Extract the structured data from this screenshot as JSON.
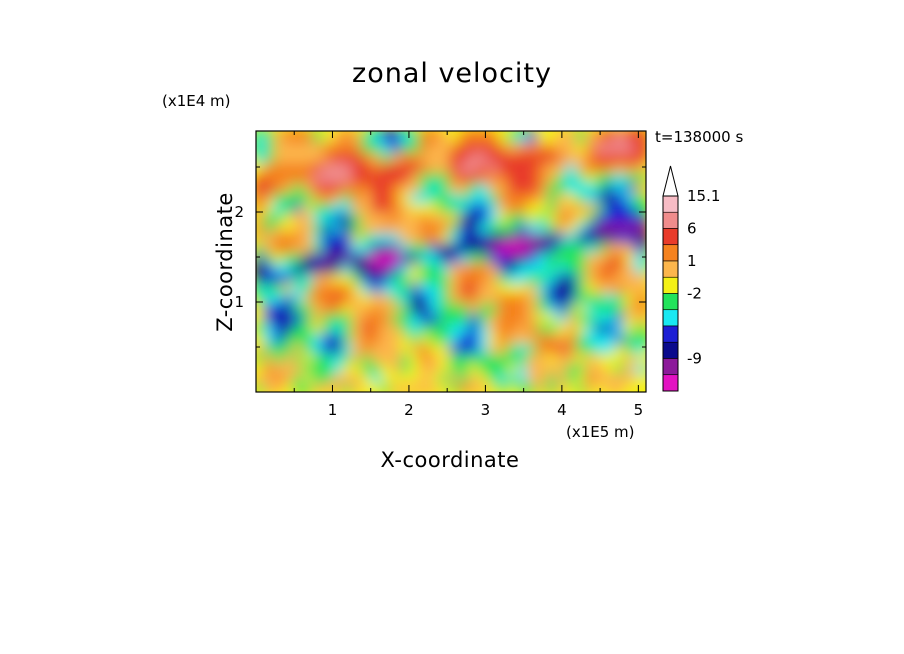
{
  "chart_data": {
    "type": "heatmap",
    "title": "zonal velocity",
    "xlabel": "X-coordinate",
    "ylabel": "Z-coordinate",
    "x_scale_label": "(x1E5 m)",
    "y_scale_label": "(x1E4 m)",
    "time_label": "t=138000 s",
    "xlim": [
      0,
      5.1
    ],
    "ylim": [
      0,
      2.9
    ],
    "x_ticks": [
      "1",
      "2",
      "3",
      "4",
      "5"
    ],
    "y_ticks": [
      "1",
      "2"
    ],
    "colorbar": {
      "levels": [
        {
          "color": "#f7bcc5",
          "tick": "15.1"
        },
        {
          "color": "#f08c8c",
          "tick": ""
        },
        {
          "color": "#e83b2a",
          "tick": "6"
        },
        {
          "color": "#f5821f",
          "tick": ""
        },
        {
          "color": "#fcb64c",
          "tick": "1"
        },
        {
          "color": "#f4f116",
          "tick": ""
        },
        {
          "color": "#22e35b",
          "tick": "-2"
        },
        {
          "color": "#19e8f2",
          "tick": ""
        },
        {
          "color": "#1d1fd4",
          "tick": ""
        },
        {
          "color": "#0a0a8c",
          "tick": ""
        },
        {
          "color": "#8c1a9a",
          "tick": "-9"
        },
        {
          "color": "#e312c2",
          "tick": ""
        }
      ],
      "extend_max_color": "#ffffff"
    },
    "dominant_bands": [
      {
        "z_range": [
          0.0,
          0.5
        ],
        "description": "yellow/green near-zero"
      },
      {
        "z_range": [
          1.4,
          1.7
        ],
        "description": "dark blue band rising to the right"
      },
      {
        "z_range": [
          2.3,
          2.7
        ],
        "description": "orange/red maxima"
      }
    ]
  }
}
